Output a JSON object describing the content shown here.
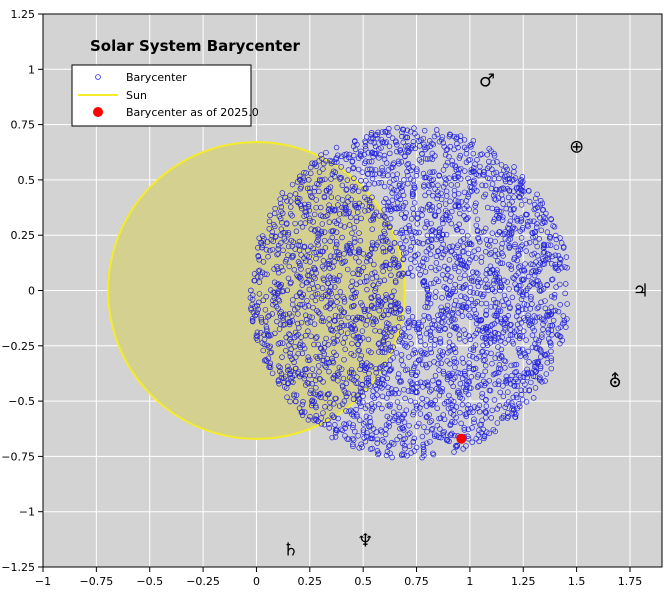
{
  "chart_data": {
    "type": "scatter",
    "title": "Solar System Barycenter",
    "xlabel": "",
    "ylabel": "",
    "xlim": [
      -1,
      1.9
    ],
    "ylim": [
      -1.25,
      1.25
    ],
    "x_ticks": [
      -1,
      -0.75,
      -0.5,
      -0.25,
      0,
      0.25,
      0.5,
      0.75,
      1,
      1.25,
      1.5,
      1.75
    ],
    "x_tick_labels": [
      "−1",
      "−0.75",
      "−0.5",
      "−0.25",
      "0",
      "0.25",
      "0.5",
      "0.75",
      "1",
      "1.25",
      "1.5",
      "1.75"
    ],
    "y_ticks": [
      1.25,
      1,
      0.75,
      0.5,
      0.25,
      0,
      -0.25,
      -0.5,
      -0.75,
      -1,
      -1.25
    ],
    "y_tick_labels": [
      "1.25",
      "1",
      "0.75",
      "0.5",
      "0.25",
      "0",
      "−0.25",
      "−0.5",
      "−0.75",
      "−1",
      "−1.25"
    ],
    "grid": true,
    "background": "#d3d3d3",
    "legend_placement": "top-left",
    "sun": {
      "center": [
        0,
        0
      ],
      "radius": 0.695,
      "fill": "#d4d190",
      "stroke": "#f4ec2a"
    },
    "barycenter_cloud": {
      "center": [
        0.72,
        -0.01
      ],
      "outer_radius": 0.75,
      "inner_radius": 0.07,
      "point_count": 3000,
      "color": "#2020e0"
    },
    "barycenter_2025": {
      "x": 0.96,
      "y": -0.67,
      "color": "#ff0000"
    },
    "series": [
      {
        "name": "Barycenter",
        "marker": "open-circle",
        "color": "#2020e0"
      },
      {
        "name": "Sun",
        "marker": "line",
        "color": "#f4ec2a"
      },
      {
        "name": "Barycenter as of 2025.0",
        "marker": "filled-circle",
        "color": "#ff0000"
      }
    ],
    "planet_markers": [
      {
        "symbol": "♂",
        "planet": "mars",
        "x": 1.08,
        "y": 0.95
      },
      {
        "symbol": "⊕",
        "planet": "earth",
        "x": 1.5,
        "y": 0.65
      },
      {
        "symbol": "♃",
        "planet": "jupiter",
        "x": 1.8,
        "y": 0.0
      },
      {
        "symbol": "⛢",
        "planet": "uranus",
        "x": 1.68,
        "y": -0.41
      },
      {
        "symbol": "♄",
        "planet": "saturn",
        "x": 0.16,
        "y": -1.17
      },
      {
        "symbol": "♆",
        "planet": "neptune",
        "x": 0.51,
        "y": -1.13
      }
    ]
  }
}
